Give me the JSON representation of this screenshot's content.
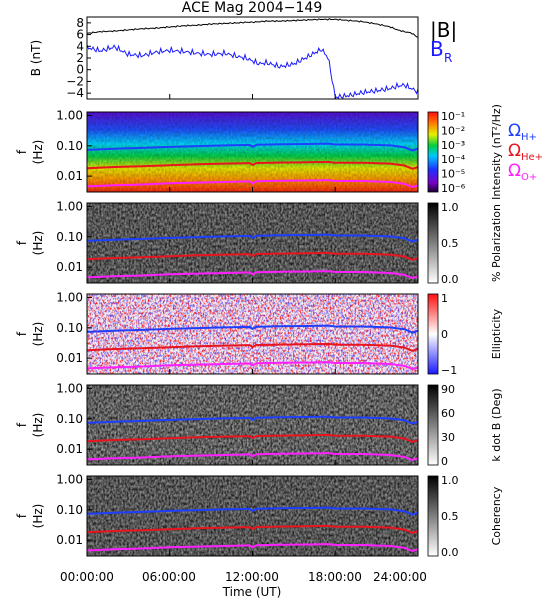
{
  "figure": {
    "title": "ACE Mag 2004−149",
    "xlabel": "Time (UT)",
    "xticks": [
      "00:00:00",
      "06:00:00",
      "12:00:00",
      "18:00:00",
      "24:00:00"
    ],
    "colors": {
      "B_total": "#000000",
      "B_R": "#1a1aff",
      "H_plus": "#1f3fff",
      "He_plus": "#e8141e",
      "O_plus": "#ff20ff"
    }
  },
  "chart_data": [
    {
      "type": "line",
      "panel": "B",
      "ylabel": "B (nT)",
      "ylim": [
        -5,
        9
      ],
      "yticks": [
        "8",
        "6",
        "4",
        "2",
        "0",
        "−2",
        "−4"
      ],
      "legend": [
        "|B|",
        "B_R"
      ],
      "legend_placement": "right",
      "x_hours": [
        0,
        1,
        2,
        3,
        4,
        5,
        6,
        7,
        8,
        9,
        10,
        11,
        11.5,
        12,
        12.5,
        13,
        14,
        15,
        16,
        17,
        17.5,
        18,
        19,
        20,
        21,
        22,
        22.5,
        23,
        23.5,
        24
      ],
      "series": [
        {
          "name": "|B|",
          "values": [
            6.2,
            6.5,
            6.6,
            6.8,
            7.0,
            7.1,
            7.3,
            7.5,
            7.6,
            7.8,
            7.9,
            8.0,
            8.1,
            8.1,
            8.2,
            8.3,
            8.3,
            8.4,
            8.5,
            8.6,
            8.6,
            8.6,
            8.4,
            8.2,
            7.8,
            7.3,
            6.8,
            6.5,
            6.3,
            5.5
          ]
        },
        {
          "name": "B_R",
          "values": [
            3.8,
            3.2,
            3.9,
            2.6,
            2.4,
            3.0,
            3.3,
            3.1,
            2.8,
            2.6,
            2.8,
            2.2,
            2.0,
            1.5,
            1.0,
            1.2,
            0.5,
            1.0,
            2.2,
            3.5,
            2.0,
            -4.7,
            -4.4,
            -3.9,
            -3.6,
            -3.2,
            -2.8,
            -2.6,
            -3.2,
            -3.8
          ]
        }
      ]
    },
    {
      "type": "heatmap",
      "panel": "intensity",
      "ylabel": "f (Hz)",
      "yscale": "log",
      "ylim": [
        0.003,
        1.3
      ],
      "yticks": [
        "1.00",
        "0.10",
        "0.01"
      ],
      "colorbar": {
        "label": "Intensity (nT²/Hz)",
        "ticks": [
          "10⁻¹",
          "10⁻²",
          "10⁻³",
          "10⁻⁴",
          "10⁻⁵",
          "10⁻⁶"
        ],
        "colormap": "rainbow"
      },
      "legend": [
        "ΩH+",
        "ΩHe+",
        "ΩO+"
      ],
      "legend_placement": "right"
    },
    {
      "type": "heatmap",
      "panel": "polarization",
      "ylabel": "f (Hz)",
      "yscale": "log",
      "ylim": [
        0.003,
        1.3
      ],
      "yticks": [
        "1.00",
        "0.10",
        "0.01"
      ],
      "colorbar": {
        "label": "% Polarization",
        "ticks": [
          "1.0",
          "0.5",
          "0.0"
        ],
        "colormap": "gray"
      }
    },
    {
      "type": "heatmap",
      "panel": "ellipticity",
      "ylabel": "f (Hz)",
      "yscale": "log",
      "ylim": [
        0.003,
        1.3
      ],
      "yticks": [
        "1.00",
        "0.10",
        "0.01"
      ],
      "colorbar": {
        "label": "Ellipticity",
        "ticks": [
          "1",
          "0",
          "−1"
        ],
        "colormap": "blue-white-red"
      }
    },
    {
      "type": "heatmap",
      "panel": "kdotb",
      "ylabel": "f (Hz)",
      "yscale": "log",
      "ylim": [
        0.003,
        1.3
      ],
      "yticks": [
        "1.00",
        "0.10",
        "0.01"
      ],
      "colorbar": {
        "label": "k dot B (Deg)",
        "ticks": [
          "90",
          "60",
          "30",
          "0"
        ],
        "colormap": "gray"
      }
    },
    {
      "type": "heatmap",
      "panel": "coherency",
      "ylabel": "f (Hz)",
      "yscale": "log",
      "ylim": [
        0.003,
        1.3
      ],
      "yticks": [
        "1.00",
        "0.10",
        "0.01"
      ],
      "colorbar": {
        "label": "Coherency",
        "ticks": [
          "1.0",
          "0.5",
          "0.0"
        ],
        "colormap": "gray"
      }
    },
    {
      "type": "line",
      "panel": "gyrofrequencies",
      "x_hours": [
        0,
        2,
        4,
        6,
        8,
        10,
        11.8,
        12,
        12.3,
        14,
        16,
        17.5,
        18,
        20,
        22,
        23,
        23.6,
        24
      ],
      "series": [
        {
          "name": "ΩH+",
          "values": [
            0.073,
            0.08,
            0.085,
            0.092,
            0.098,
            0.103,
            0.107,
            0.093,
            0.108,
            0.112,
            0.115,
            0.118,
            0.11,
            0.11,
            0.103,
            0.09,
            0.07,
            0.08
          ]
        },
        {
          "name": "ΩHe+",
          "values": [
            0.0183,
            0.02,
            0.0213,
            0.023,
            0.0245,
            0.0258,
            0.0268,
            0.0233,
            0.027,
            0.028,
            0.0288,
            0.0295,
            0.0275,
            0.0275,
            0.0258,
            0.0225,
            0.0175,
            0.02
          ]
        },
        {
          "name": "ΩO+",
          "values": [
            0.0046,
            0.005,
            0.0053,
            0.0058,
            0.0061,
            0.0064,
            0.0067,
            0.0058,
            0.0068,
            0.007,
            0.0072,
            0.0074,
            0.0069,
            0.0069,
            0.0064,
            0.0056,
            0.0044,
            0.005
          ]
        }
      ]
    }
  ]
}
